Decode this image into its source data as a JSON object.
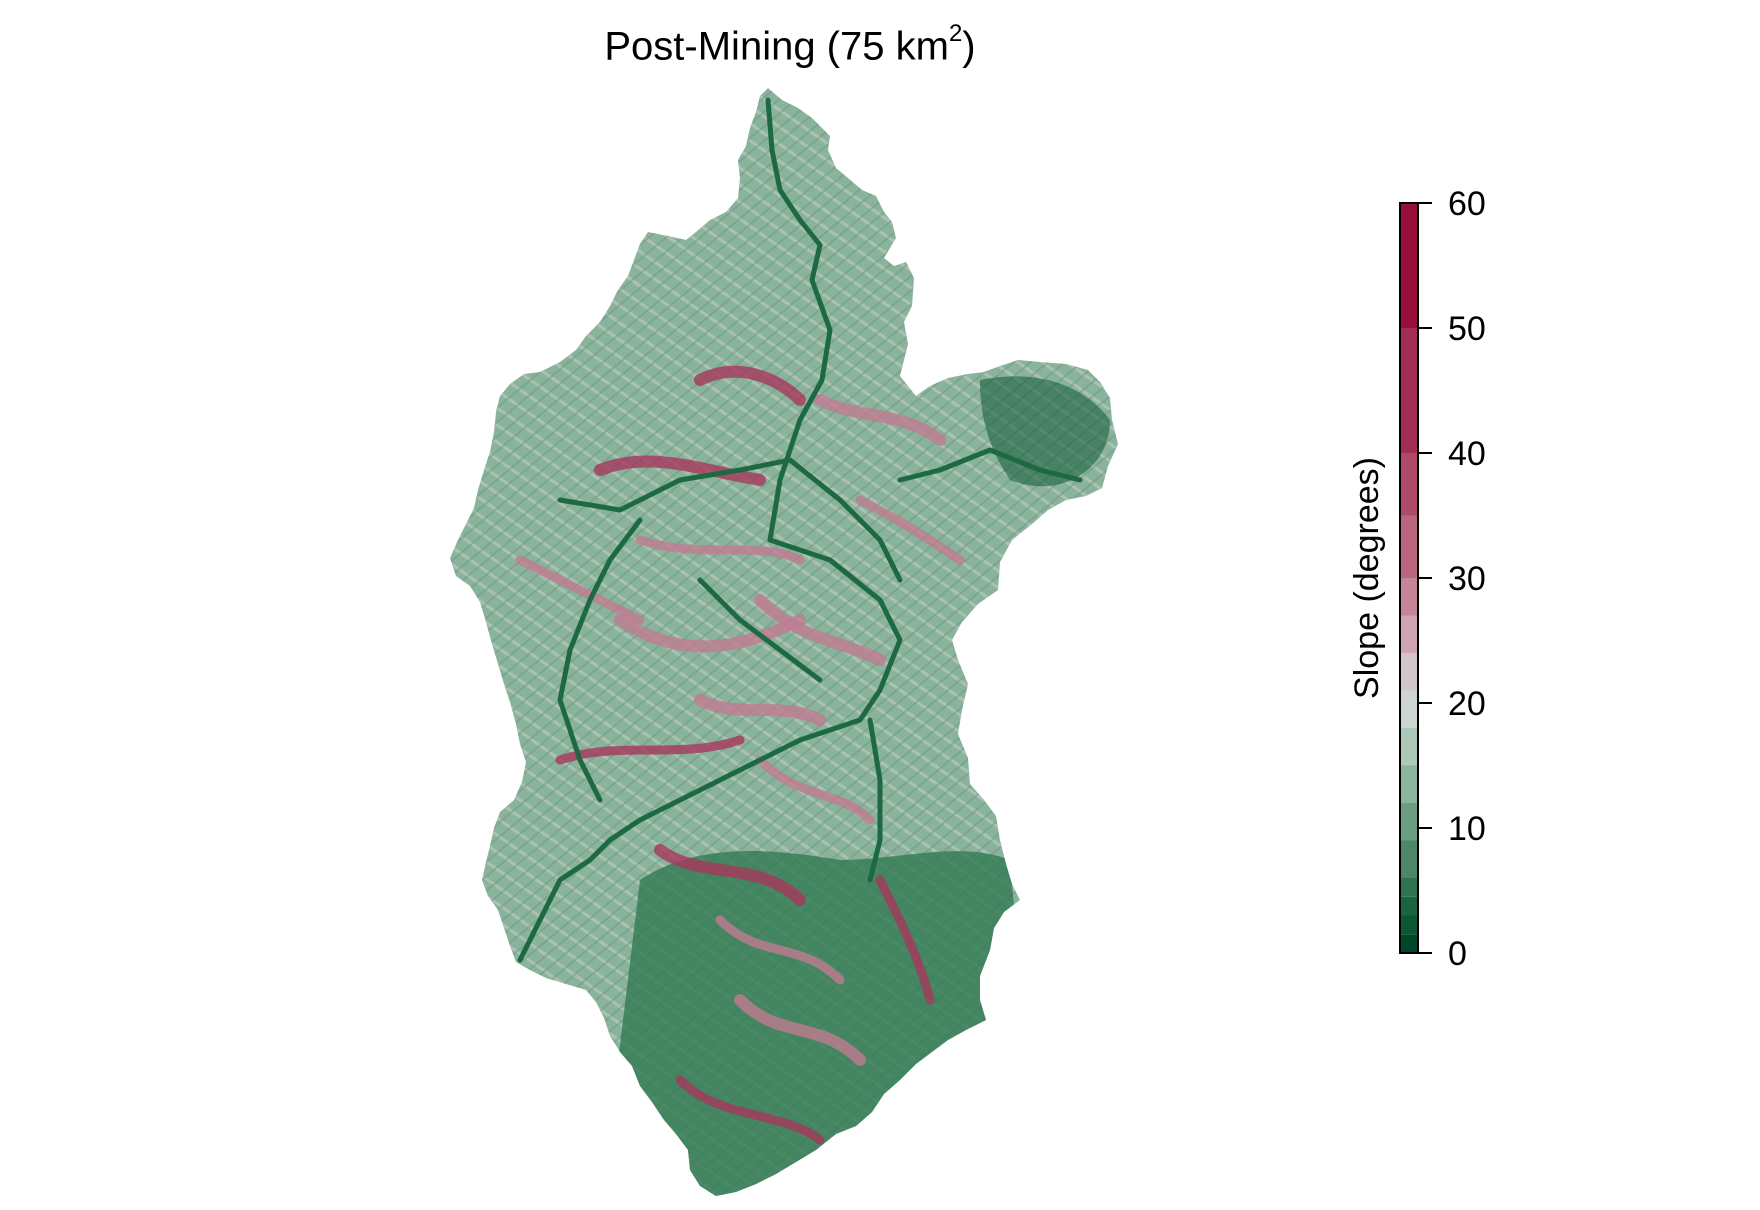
{
  "title": {
    "main": "Post-Mining (75 km",
    "superscript": "2",
    "suffix": ")"
  },
  "legend": {
    "label": "Slope (degrees)",
    "ticks": [
      "0",
      "10",
      "20",
      "30",
      "40",
      "50",
      "60"
    ],
    "tick_values": [
      0,
      10,
      20,
      30,
      40,
      50,
      60
    ],
    "range": [
      0,
      60
    ],
    "breaks": [
      0,
      1.5,
      3,
      4.5,
      6,
      9,
      12,
      15,
      18,
      21,
      24,
      27,
      30,
      35,
      40,
      50,
      60
    ],
    "colors": [
      "#00472a",
      "#0d5734",
      "#1b6440",
      "#2f744f",
      "#4c8866",
      "#6b9d80",
      "#8cb39d",
      "#adc7b8",
      "#cdd5d0",
      "#d4c4cb",
      "#cfa4b1",
      "#c58597",
      "#b9667e",
      "#ae4a68",
      "#a22f53",
      "#950f38"
    ]
  },
  "map": {
    "type": "slope raster",
    "colors": {
      "flat_dark": "#0f5a35",
      "flat": "#2f7a51",
      "mid": "#8ab39c",
      "neutral": "#c9d0cc",
      "steep": "#c07a91",
      "very_steep": "#a8375c",
      "channel": "#1d6a42"
    }
  }
}
